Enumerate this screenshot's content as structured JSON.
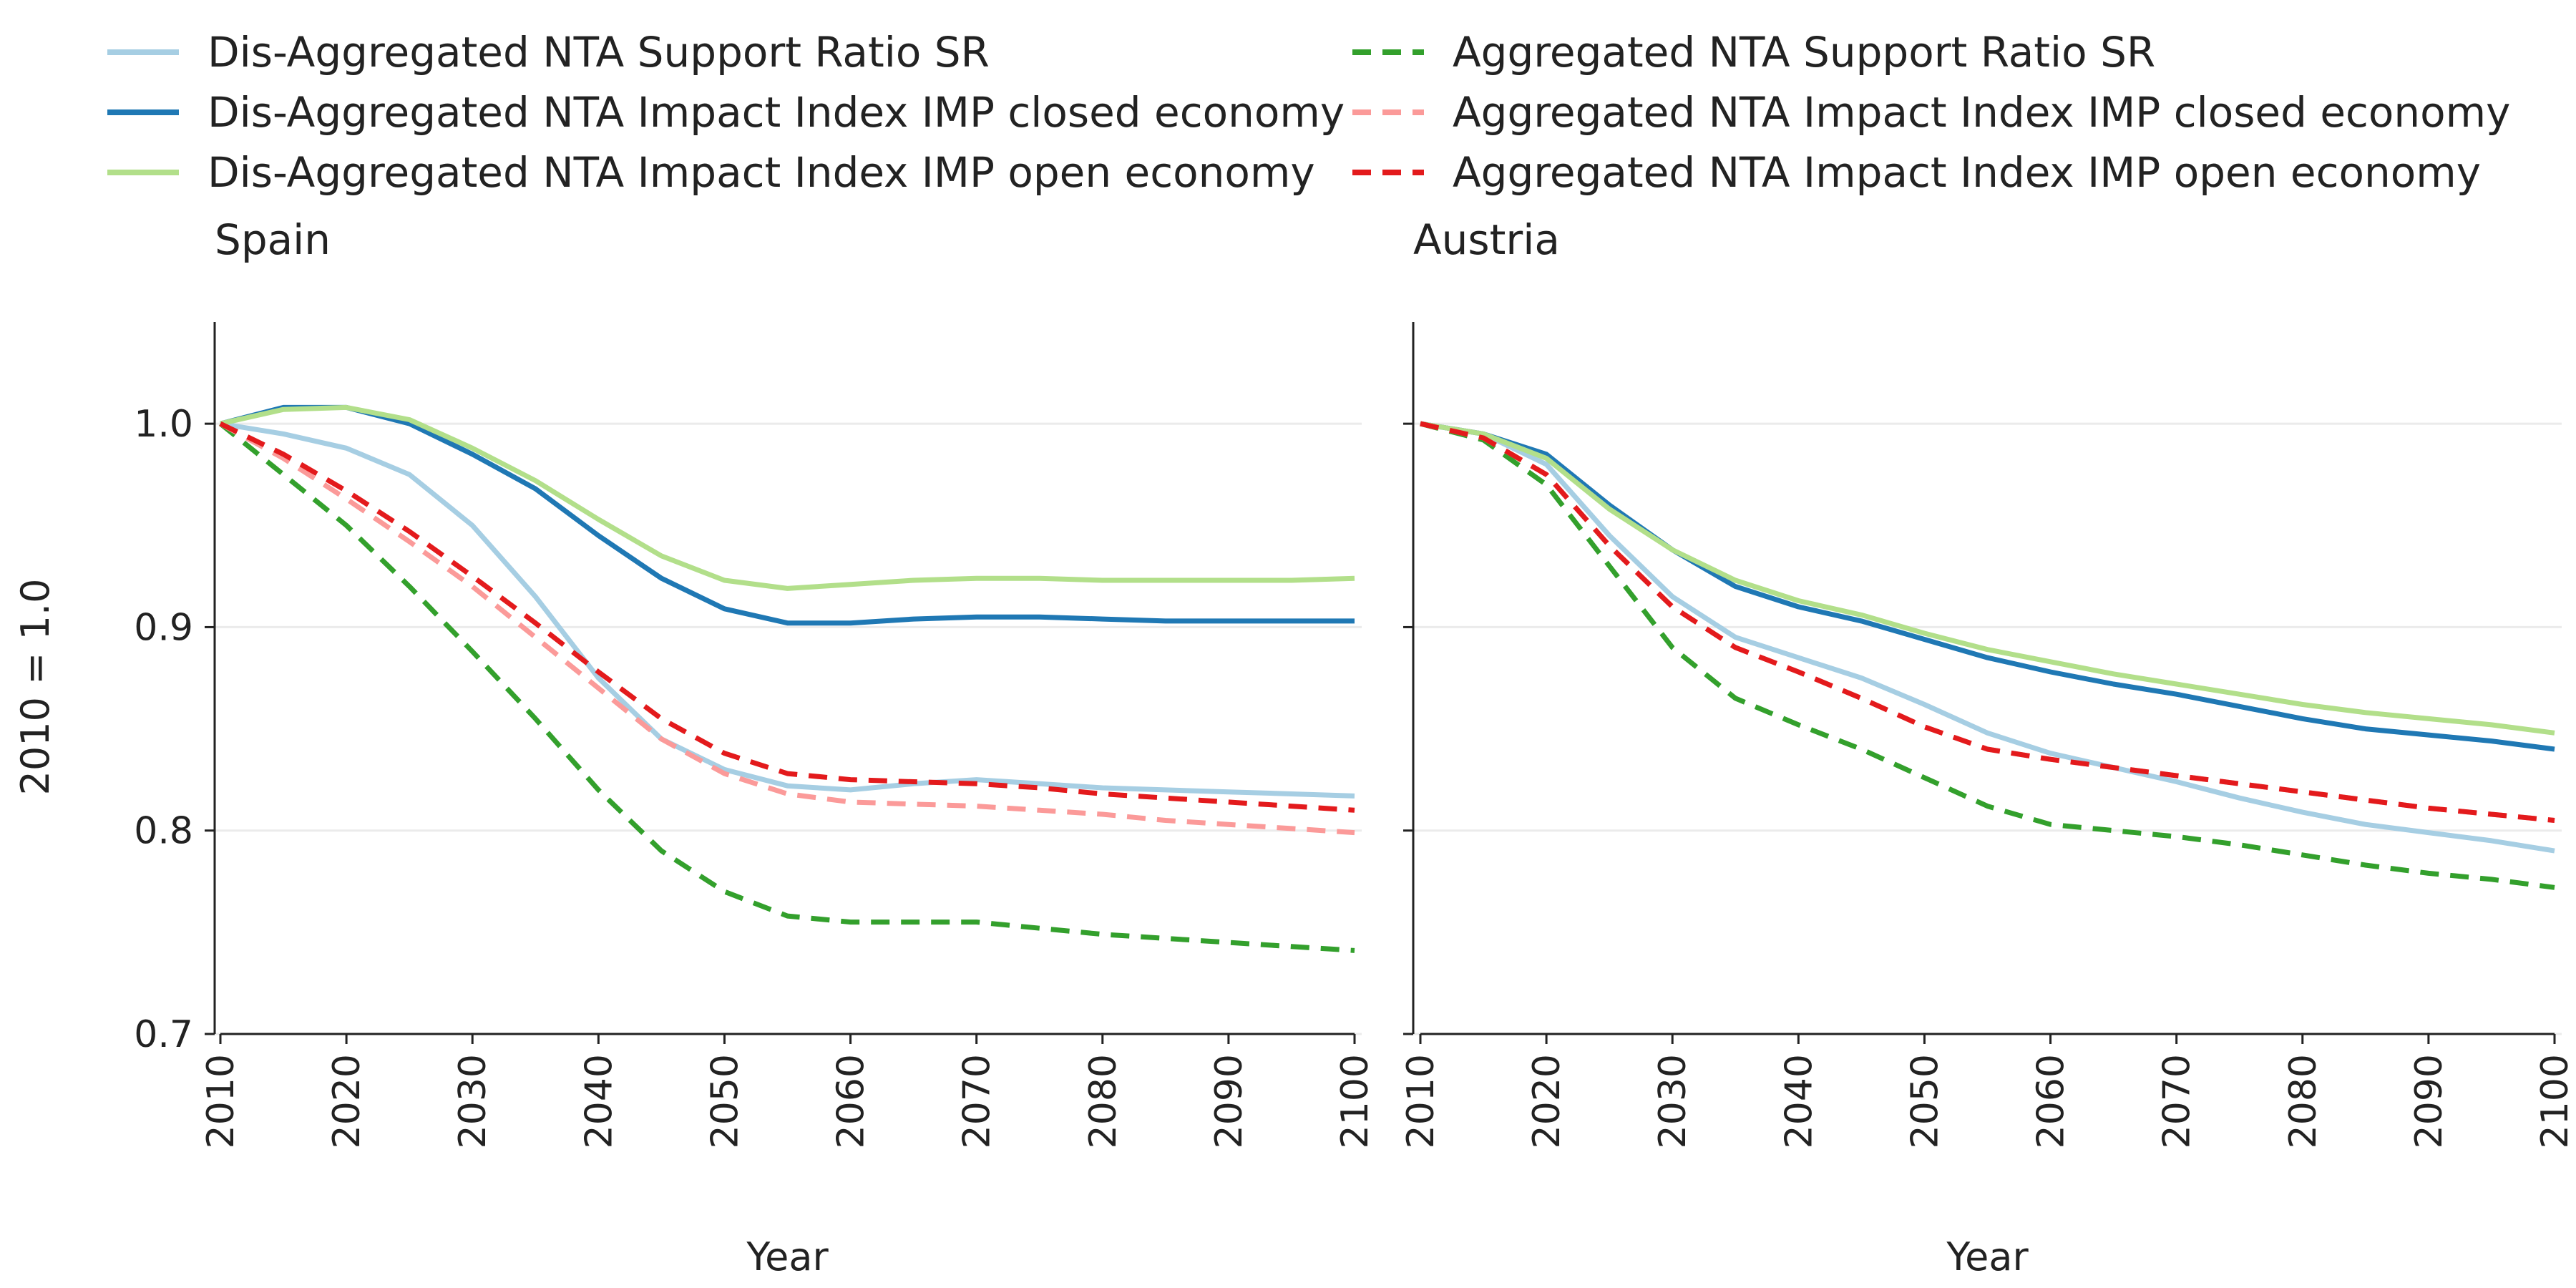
{
  "chart_data": {
    "type": "line",
    "ylabel": "2010 = 1.0",
    "xlabel": "Year",
    "ylim": [
      0.7,
      1.05
    ],
    "yticks": [
      "0.7",
      "0.8",
      "0.9",
      "1.0"
    ],
    "xlim": [
      2010,
      2100
    ],
    "xticks": [
      "2010",
      "2020",
      "2030",
      "2040",
      "2050",
      "2060",
      "2070",
      "2080",
      "2090",
      "2100"
    ],
    "grid": "horizontal",
    "legend_position": "top",
    "legend": [
      {
        "label": "Dis-Aggregated NTA Support Ratio SR",
        "color": "#a6cee3",
        "dashed": false
      },
      {
        "label": "Dis-Aggregated NTA Impact Index IMP closed economy",
        "color": "#1f78b4",
        "dashed": false
      },
      {
        "label": "Dis-Aggregated NTA Impact Index IMP open economy",
        "color": "#b2df8a",
        "dashed": false
      },
      {
        "label": "Aggregated NTA Support Ratio SR",
        "color": "#33a02c",
        "dashed": true
      },
      {
        "label": "Aggregated NTA Impact Index IMP closed economy",
        "color": "#fb9a99",
        "dashed": true
      },
      {
        "label": "Aggregated NTA Impact Index IMP open economy",
        "color": "#e31a1c",
        "dashed": true
      }
    ],
    "x": [
      2010,
      2015,
      2020,
      2025,
      2030,
      2035,
      2040,
      2045,
      2050,
      2055,
      2060,
      2065,
      2070,
      2075,
      2080,
      2085,
      2090,
      2095,
      2100
    ],
    "panels": [
      {
        "title": "Spain",
        "series": [
          {
            "name": "Dis-Aggregated NTA Support Ratio SR",
            "values": [
              1.0,
              0.995,
              0.988,
              0.975,
              0.95,
              0.915,
              0.875,
              0.845,
              0.83,
              0.822,
              0.82,
              0.823,
              0.825,
              0.823,
              0.821,
              0.82,
              0.819,
              0.818,
              0.817
            ]
          },
          {
            "name": "Dis-Aggregated NTA Impact Index IMP closed economy",
            "values": [
              1.0,
              1.008,
              1.008,
              1.0,
              0.985,
              0.968,
              0.945,
              0.924,
              0.909,
              0.902,
              0.902,
              0.904,
              0.905,
              0.905,
              0.904,
              0.903,
              0.903,
              0.903,
              0.903
            ]
          },
          {
            "name": "Dis-Aggregated NTA Impact Index IMP open economy",
            "values": [
              1.0,
              1.007,
              1.008,
              1.002,
              0.988,
              0.972,
              0.953,
              0.935,
              0.923,
              0.919,
              0.921,
              0.923,
              0.924,
              0.924,
              0.923,
              0.923,
              0.923,
              0.923,
              0.924
            ]
          },
          {
            "name": "Aggregated NTA Support Ratio SR",
            "values": [
              1.0,
              0.975,
              0.95,
              0.92,
              0.888,
              0.855,
              0.82,
              0.79,
              0.77,
              0.758,
              0.755,
              0.755,
              0.755,
              0.752,
              0.749,
              0.747,
              0.745,
              0.743,
              0.741
            ]
          },
          {
            "name": "Aggregated NTA Impact Index IMP closed economy",
            "values": [
              1.0,
              0.983,
              0.963,
              0.942,
              0.92,
              0.895,
              0.87,
              0.845,
              0.828,
              0.818,
              0.814,
              0.813,
              0.812,
              0.81,
              0.808,
              0.805,
              0.803,
              0.801,
              0.799
            ]
          },
          {
            "name": "Aggregated NTA Impact Index IMP open economy",
            "values": [
              1.0,
              0.985,
              0.967,
              0.947,
              0.925,
              0.902,
              0.878,
              0.855,
              0.838,
              0.828,
              0.825,
              0.824,
              0.823,
              0.821,
              0.818,
              0.816,
              0.814,
              0.812,
              0.81
            ]
          }
        ]
      },
      {
        "title": "Austria",
        "series": [
          {
            "name": "Dis-Aggregated NTA Support Ratio SR",
            "values": [
              1.0,
              0.995,
              0.98,
              0.945,
              0.915,
              0.895,
              0.885,
              0.875,
              0.862,
              0.848,
              0.838,
              0.831,
              0.824,
              0.816,
              0.809,
              0.803,
              0.799,
              0.795,
              0.79
            ]
          },
          {
            "name": "Dis-Aggregated NTA Impact Index IMP closed economy",
            "values": [
              1.0,
              0.995,
              0.985,
              0.96,
              0.938,
              0.92,
              0.91,
              0.903,
              0.894,
              0.885,
              0.878,
              0.872,
              0.867,
              0.861,
              0.855,
              0.85,
              0.847,
              0.844,
              0.84
            ]
          },
          {
            "name": "Dis-Aggregated NTA Impact Index IMP open economy",
            "values": [
              1.0,
              0.995,
              0.983,
              0.958,
              0.938,
              0.923,
              0.913,
              0.906,
              0.897,
              0.889,
              0.883,
              0.877,
              0.872,
              0.867,
              0.862,
              0.858,
              0.855,
              0.852,
              0.848
            ]
          },
          {
            "name": "Aggregated NTA Support Ratio SR",
            "values": [
              1.0,
              0.992,
              0.97,
              0.93,
              0.89,
              0.865,
              0.852,
              0.84,
              0.826,
              0.812,
              0.803,
              0.8,
              0.797,
              0.793,
              0.788,
              0.783,
              0.779,
              0.776,
              0.772
            ]
          },
          {
            "name": "Aggregated NTA Impact Index IMP closed economy",
            "values": [
              1.0,
              0.993,
              0.975,
              0.94,
              0.91,
              0.89,
              0.878,
              0.865,
              0.851,
              0.84,
              0.835,
              0.831,
              0.827,
              0.823,
              0.819,
              0.815,
              0.811,
              0.808,
              0.805
            ]
          },
          {
            "name": "Aggregated NTA Impact Index IMP open economy",
            "values": [
              1.0,
              0.993,
              0.975,
              0.94,
              0.91,
              0.89,
              0.878,
              0.865,
              0.851,
              0.84,
              0.835,
              0.831,
              0.827,
              0.823,
              0.819,
              0.815,
              0.811,
              0.808,
              0.805
            ]
          }
        ]
      }
    ]
  }
}
